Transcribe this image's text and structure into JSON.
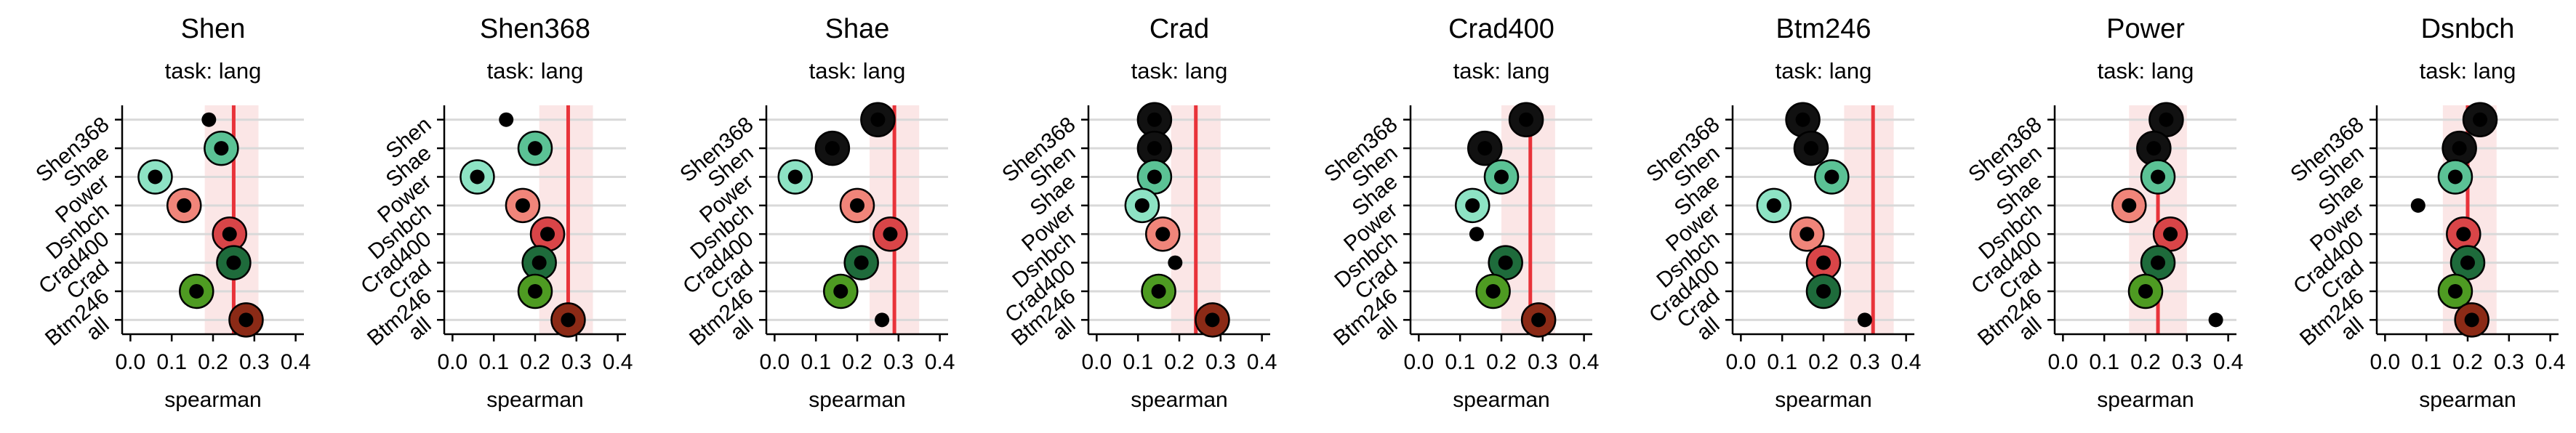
{
  "chart_data": {
    "type": "scatter",
    "subtitle": "task: lang",
    "xlabel": "spearman",
    "xlim": [
      -0.02,
      0.42
    ],
    "xticks": [
      0.0,
      0.1,
      0.2,
      0.3,
      0.4
    ],
    "xtick_labels": [
      "0.0",
      "0.1",
      "0.2",
      "0.3",
      "0.4"
    ],
    "marker_colors": {
      "Shen": "#111111",
      "Shen368": "#111111",
      "Shae": "#5bc295",
      "Power": "#8de3c4",
      "Dsnbch": "#f0857a",
      "Crad400": "#d94548",
      "Crad": "#1e6b3b",
      "Btm246": "#4e9b22",
      "all": "#8b2a16"
    },
    "reference_line_color": "#e8333a",
    "band_color": "#f9d6d6",
    "panels": [
      {
        "title": "Shen",
        "ref": 0.25,
        "band": [
          0.18,
          0.31
        ],
        "rows": [
          {
            "label": "Shen368",
            "value": 0.19,
            "circle": false
          },
          {
            "label": "Shae",
            "value": 0.22,
            "circle": true
          },
          {
            "label": "Power",
            "value": 0.06,
            "circle": true
          },
          {
            "label": "Dsnbch",
            "value": 0.13,
            "circle": true
          },
          {
            "label": "Crad400",
            "value": 0.24,
            "circle": true
          },
          {
            "label": "Crad",
            "value": 0.25,
            "circle": true
          },
          {
            "label": "Btm246",
            "value": 0.16,
            "circle": true
          },
          {
            "label": "all",
            "value": 0.28,
            "circle": true
          }
        ]
      },
      {
        "title": "Shen368",
        "ref": 0.28,
        "band": [
          0.21,
          0.34
        ],
        "rows": [
          {
            "label": "Shen",
            "value": 0.13,
            "circle": false
          },
          {
            "label": "Shae",
            "value": 0.2,
            "circle": true
          },
          {
            "label": "Power",
            "value": 0.06,
            "circle": true
          },
          {
            "label": "Dsnbch",
            "value": 0.17,
            "circle": true
          },
          {
            "label": "Crad400",
            "value": 0.23,
            "circle": true
          },
          {
            "label": "Crad",
            "value": 0.21,
            "circle": true
          },
          {
            "label": "Btm246",
            "value": 0.2,
            "circle": true
          },
          {
            "label": "all",
            "value": 0.28,
            "circle": true
          }
        ]
      },
      {
        "title": "Shae",
        "ref": 0.29,
        "band": [
          0.23,
          0.35
        ],
        "rows": [
          {
            "label": "Shen368",
            "value": 0.25,
            "circle": true
          },
          {
            "label": "Shen",
            "value": 0.14,
            "circle": true
          },
          {
            "label": "Power",
            "value": 0.05,
            "circle": true
          },
          {
            "label": "Dsnbch",
            "value": 0.2,
            "circle": true
          },
          {
            "label": "Crad400",
            "value": 0.28,
            "circle": true
          },
          {
            "label": "Crad",
            "value": 0.21,
            "circle": true
          },
          {
            "label": "Btm246",
            "value": 0.16,
            "circle": true
          },
          {
            "label": "all",
            "value": 0.26,
            "circle": false
          }
        ]
      },
      {
        "title": "Crad",
        "ref": 0.24,
        "band": [
          0.18,
          0.3
        ],
        "rows": [
          {
            "label": "Shen368",
            "value": 0.14,
            "circle": true
          },
          {
            "label": "Shen",
            "value": 0.14,
            "circle": true
          },
          {
            "label": "Shae",
            "value": 0.14,
            "circle": true
          },
          {
            "label": "Power",
            "value": 0.11,
            "circle": true
          },
          {
            "label": "Dsnbch",
            "value": 0.16,
            "circle": true
          },
          {
            "label": "Crad400",
            "value": 0.19,
            "circle": false
          },
          {
            "label": "Btm246",
            "value": 0.15,
            "circle": true
          },
          {
            "label": "all",
            "value": 0.28,
            "circle": true
          }
        ]
      },
      {
        "title": "Crad400",
        "ref": 0.27,
        "band": [
          0.2,
          0.33
        ],
        "rows": [
          {
            "label": "Shen368",
            "value": 0.26,
            "circle": true
          },
          {
            "label": "Shen",
            "value": 0.16,
            "circle": true
          },
          {
            "label": "Shae",
            "value": 0.2,
            "circle": true
          },
          {
            "label": "Power",
            "value": 0.13,
            "circle": true
          },
          {
            "label": "Dsnbch",
            "value": 0.14,
            "circle": false
          },
          {
            "label": "Crad",
            "value": 0.21,
            "circle": true
          },
          {
            "label": "Btm246",
            "value": 0.18,
            "circle": true
          },
          {
            "label": "all",
            "value": 0.29,
            "circle": true
          }
        ]
      },
      {
        "title": "Btm246",
        "ref": 0.32,
        "band": [
          0.25,
          0.37
        ],
        "rows": [
          {
            "label": "Shen368",
            "value": 0.15,
            "circle": true
          },
          {
            "label": "Shen",
            "value": 0.17,
            "circle": true
          },
          {
            "label": "Shae",
            "value": 0.22,
            "circle": true
          },
          {
            "label": "Power",
            "value": 0.08,
            "circle": true
          },
          {
            "label": "Dsnbch",
            "value": 0.16,
            "circle": true
          },
          {
            "label": "Crad400",
            "value": 0.2,
            "circle": true
          },
          {
            "label": "Crad",
            "value": 0.2,
            "circle": true
          },
          {
            "label": "all",
            "value": 0.3,
            "circle": false
          }
        ]
      },
      {
        "title": "Power",
        "ref": 0.23,
        "band": [
          0.16,
          0.3
        ],
        "rows": [
          {
            "label": "Shen368",
            "value": 0.25,
            "circle": true
          },
          {
            "label": "Shen",
            "value": 0.22,
            "circle": true
          },
          {
            "label": "Shae",
            "value": 0.23,
            "circle": true
          },
          {
            "label": "Dsnbch",
            "value": 0.16,
            "circle": true
          },
          {
            "label": "Crad400",
            "value": 0.26,
            "circle": true
          },
          {
            "label": "Crad",
            "value": 0.23,
            "circle": true
          },
          {
            "label": "Btm246",
            "value": 0.2,
            "circle": true
          },
          {
            "label": "all",
            "value": 0.37,
            "circle": false
          }
        ]
      },
      {
        "title": "Dsnbch",
        "ref": 0.2,
        "band": [
          0.14,
          0.27
        ],
        "rows": [
          {
            "label": "Shen368",
            "value": 0.23,
            "circle": true
          },
          {
            "label": "Shen",
            "value": 0.18,
            "circle": true
          },
          {
            "label": "Shae",
            "value": 0.17,
            "circle": true
          },
          {
            "label": "Power",
            "value": 0.08,
            "circle": false
          },
          {
            "label": "Crad400",
            "value": 0.19,
            "circle": true
          },
          {
            "label": "Crad",
            "value": 0.2,
            "circle": true
          },
          {
            "label": "Btm246",
            "value": 0.17,
            "circle": true
          },
          {
            "label": "all",
            "value": 0.21,
            "circle": true
          }
        ]
      }
    ]
  }
}
